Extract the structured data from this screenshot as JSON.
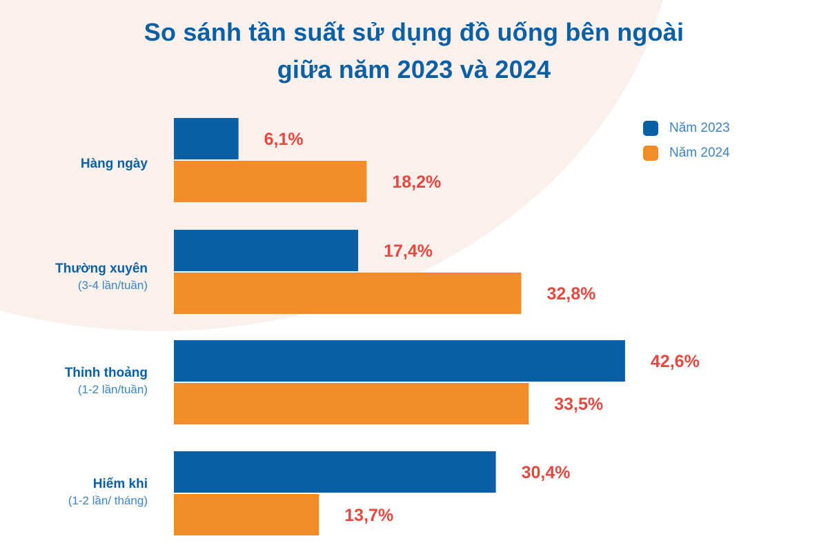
{
  "title_line_1": "So sánh tần suất sử dụng đồ uống bên ngoài",
  "title_line_2": "giữa năm 2023 và 2024",
  "colors": {
    "series_2023": "#0b5fa5",
    "series_2024": "#f28c28",
    "value_label": "#e8473f",
    "title": "#0b5fa5",
    "background_shape": "#fbf1ec"
  },
  "categories_display": [
    {
      "name": "Hàng ngày",
      "sub": ""
    },
    {
      "name": "Thường xuyên",
      "sub": "(3-4 lần/tuần)"
    },
    {
      "name": "Thỉnh thoảng",
      "sub": "(1-2 lần/tuần)"
    },
    {
      "name": "Hiếm khi",
      "sub": "(1-2 lần/ tháng)"
    }
  ],
  "chart_data": {
    "type": "bar",
    "orientation": "horizontal",
    "title": "So sánh tần suất sử dụng đồ uống bên ngoài giữa năm 2023 và 2024",
    "categories": [
      "Hàng ngày",
      "Thường xuyên (3-4 lần/tuần)",
      "Thỉnh thoảng (1-2 lần/tuần)",
      "Hiếm khi (1-2 lần/ tháng)"
    ],
    "series": [
      {
        "name": "Năm 2023",
        "values": [
          6.1,
          17.4,
          42.6,
          30.4
        ],
        "labels": [
          "6,1%",
          "17,4%",
          "42,6%",
          "30,4%"
        ]
      },
      {
        "name": "Năm 2024",
        "values": [
          18.2,
          32.8,
          33.5,
          13.7
        ],
        "labels": [
          "18,2%",
          "32,8%",
          "33,5%",
          "13,7%"
        ]
      }
    ],
    "unit": "%",
    "grid": false,
    "legend": "top-right"
  }
}
